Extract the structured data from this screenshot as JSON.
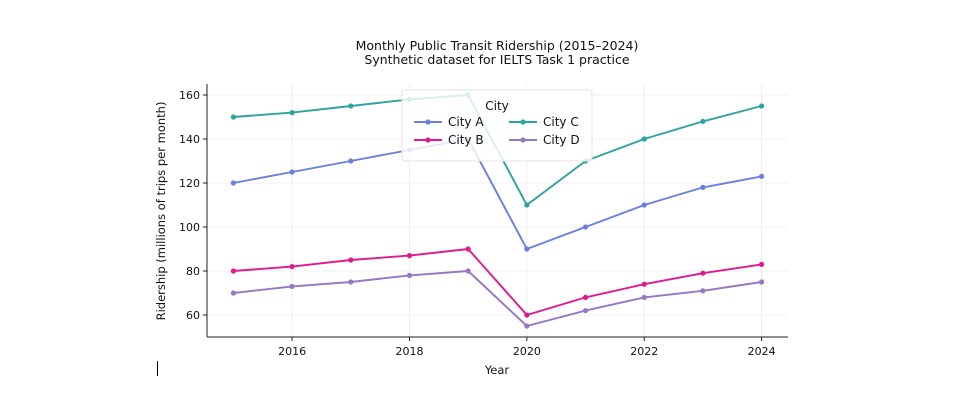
{
  "chart_data": {
    "type": "line",
    "title": "Monthly Public Transit Ridership (2015–2024)",
    "subtitle": "Synthetic dataset for IELTS Task 1 practice",
    "xlabel": "Year",
    "ylabel": "Ridership (millions of trips per month)",
    "x": [
      2015,
      2016,
      2017,
      2018,
      2019,
      2020,
      2021,
      2022,
      2023,
      2024
    ],
    "xlim": [
      2014.55,
      2024.45
    ],
    "ylim": [
      50,
      165
    ],
    "xticks": [
      2016,
      2018,
      2020,
      2022,
      2024
    ],
    "yticks": [
      60,
      80,
      100,
      120,
      140,
      160
    ],
    "grid": true,
    "legend": {
      "title": "City",
      "placement": "top-center"
    },
    "series": [
      {
        "name": "City A",
        "color": "#6b7fe3",
        "values": [
          120,
          125,
          130,
          135,
          140,
          90,
          100,
          110,
          118,
          123
        ]
      },
      {
        "name": "City B",
        "color": "#e0198f",
        "values": [
          80,
          82,
          85,
          87,
          90,
          60,
          68,
          74,
          79,
          83
        ]
      },
      {
        "name": "City C",
        "color": "#2fa3a0",
        "values": [
          150,
          152,
          155,
          158,
          160,
          110,
          130,
          140,
          148,
          155
        ]
      },
      {
        "name": "City D",
        "color": "#9577c2",
        "values": [
          70,
          73,
          75,
          78,
          80,
          55,
          62,
          68,
          71,
          75
        ]
      }
    ]
  }
}
